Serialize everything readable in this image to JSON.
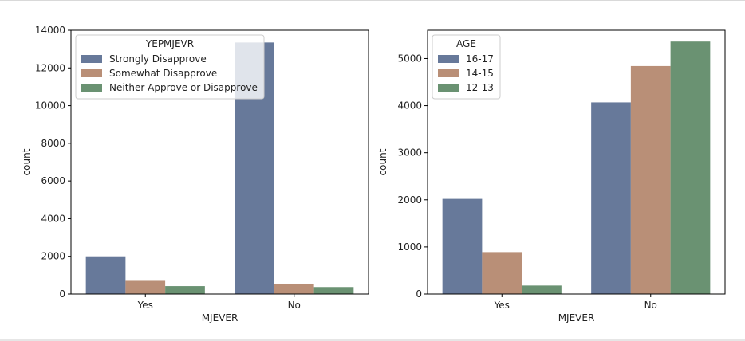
{
  "chart_data": [
    {
      "type": "bar",
      "xlabel": "MJEVER",
      "ylabel": "count",
      "categories": [
        "Yes",
        "No"
      ],
      "ylim": [
        0,
        14000
      ],
      "yticks": [
        0,
        2000,
        4000,
        6000,
        8000,
        10000,
        12000,
        14000
      ],
      "legend": {
        "title": "YEPMJEVR",
        "placement": "top-left"
      },
      "series": [
        {
          "name": "Strongly Disapprove",
          "color": "#67799a",
          "values": [
            2000,
            13350
          ]
        },
        {
          "name": "Somewhat Disapprove",
          "color": "#b98f77",
          "values": [
            700,
            550
          ]
        },
        {
          "name": "Neither Approve or Disapprove",
          "color": "#6a9272",
          "values": [
            420,
            370
          ]
        }
      ]
    },
    {
      "type": "bar",
      "xlabel": "MJEVER",
      "ylabel": "count",
      "categories": [
        "Yes",
        "No"
      ],
      "ylim": [
        0,
        5600
      ],
      "yticks": [
        0,
        1000,
        2000,
        3000,
        4000,
        5000
      ],
      "legend": {
        "title": "AGE",
        "placement": "top-left"
      },
      "series": [
        {
          "name": "16-17",
          "color": "#67799a",
          "values": [
            2020,
            4070
          ]
        },
        {
          "name": "14-15",
          "color": "#b98f77",
          "values": [
            890,
            4840
          ]
        },
        {
          "name": "12-13",
          "color": "#6a9272",
          "values": [
            180,
            5360
          ]
        }
      ]
    }
  ]
}
